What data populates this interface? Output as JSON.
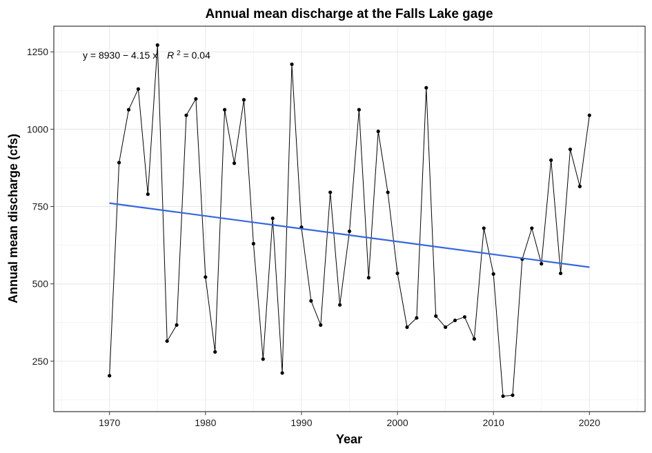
{
  "chart_data": {
    "type": "line",
    "title": "Annual mean discharge at the Falls Lake gage",
    "xlabel": "Year",
    "ylabel": "Annual mean discharge (cfs)",
    "xlim": [
      1964.2,
      2025.8
    ],
    "ylim": [
      87,
      1333
    ],
    "x_ticks": [
      1970,
      1980,
      1990,
      2000,
      2010,
      2020
    ],
    "y_ticks": [
      250,
      500,
      750,
      1000,
      1250
    ],
    "grid": true,
    "annotation": {
      "text": "y = 8930 − 4.15 x",
      "r2_label": "R",
      "r2_exp": "2",
      "r2_value": " = 0.04"
    },
    "series": [
      {
        "kind": "observed",
        "color": "#000000",
        "x": [
          1970,
          1971,
          1972,
          1973,
          1974,
          1975,
          1976,
          1977,
          1978,
          1979,
          1980,
          1981,
          1982,
          1983,
          1984,
          1985,
          1986,
          1987,
          1988,
          1989,
          1990,
          1991,
          1992,
          1993,
          1994,
          1995,
          1996,
          1997,
          1998,
          1999,
          2000,
          2001,
          2002,
          2003,
          2004,
          2005,
          2006,
          2007,
          2008,
          2009,
          2010,
          2011,
          2012,
          2013,
          2014,
          2015,
          2016,
          2017,
          2018,
          2019,
          2020
        ],
        "values": [
          203,
          892,
          1063,
          1130,
          790,
          1272,
          315,
          367,
          1045,
          1098,
          522,
          280,
          1063,
          890,
          1095,
          630,
          257,
          712,
          212,
          1210,
          683,
          445,
          367,
          796,
          432,
          670,
          1063,
          520,
          993,
          796,
          534,
          360,
          390,
          1134,
          396,
          360,
          382,
          393,
          322,
          680,
          532,
          137,
          140,
          580,
          680,
          565,
          900,
          534,
          935,
          815,
          1045
        ]
      },
      {
        "kind": "fit",
        "color": "#3366E0",
        "x": [
          1970,
          2020
        ],
        "values": [
          761,
          554
        ]
      }
    ]
  }
}
